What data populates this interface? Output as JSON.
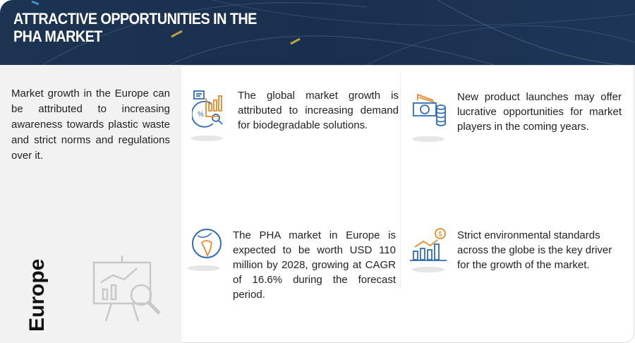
{
  "header": {
    "title": "ATTRACTIVE OPPORTUNITIES IN THE PHA MARKET"
  },
  "left_panel": {
    "text": "Market growth in the Europe can be attributed to increasing awareness towards plastic waste and strict norms and regulations over it.",
    "region_label": "Europe"
  },
  "items": [
    {
      "icon": "report-analysis-icon",
      "text": "The global market growth is attributed to increasing demand for biodegradable solutions."
    },
    {
      "icon": "money-coins-icon",
      "text": "New product launches may offer lucrative opportunities for market players in the coming years."
    },
    {
      "icon": "globe-icon",
      "text": "The PHA market in Europe is expected to be worth USD 110 million by 2028, growing at CAGR of 16.6% during the forecast period."
    },
    {
      "icon": "growth-chart-dollar-icon",
      "text": "Strict environmental standards across the globe is the key driver for the growth of the market."
    }
  ],
  "colors": {
    "header": "#1a2f4e",
    "icon_blue": "#2e6db4",
    "icon_orange": "#e8892b",
    "left_panel": "#f2f2f2"
  }
}
